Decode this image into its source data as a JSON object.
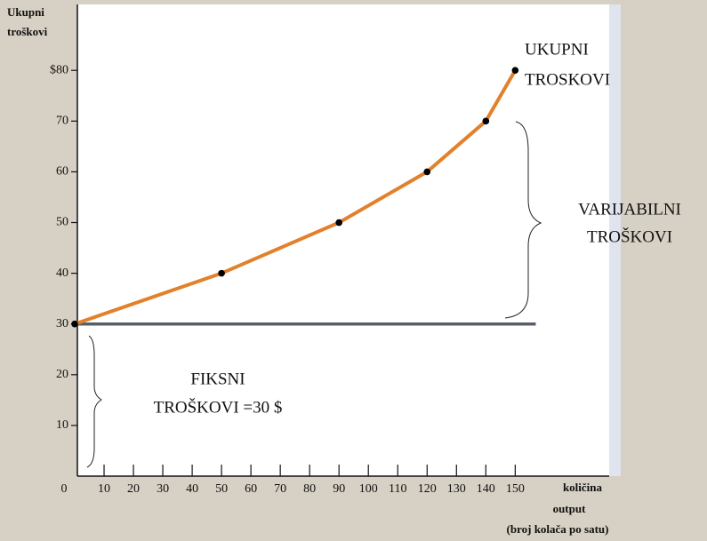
{
  "chart_data": {
    "type": "line",
    "y_label": [
      "Ukupni",
      "troškovi"
    ],
    "x_label": [
      "količina",
      "output",
      "(broj kolača po satu)"
    ],
    "x": [
      0,
      50,
      90,
      120,
      140,
      150
    ],
    "series": [
      {
        "name": "UKUPNI TROSKOVI",
        "color": "#e3802c",
        "values": [
          30,
          40,
          50,
          60,
          70,
          80
        ]
      }
    ],
    "xlim": [
      0,
      182
    ],
    "ylim": [
      0,
      93
    ],
    "xticks": [
      0,
      10,
      20,
      30,
      40,
      50,
      60,
      70,
      80,
      90,
      100,
      110,
      120,
      130,
      140,
      150
    ],
    "yticks": [
      10,
      20,
      30,
      40,
      50,
      60,
      {
        "value": 80,
        "label": "$80"
      },
      70
    ],
    "fixed_line": {
      "value": 30,
      "x_end": 157,
      "color": "#585f6a"
    },
    "annotations": {
      "total": [
        "UKUPNI",
        "TROSKOVI"
      ],
      "variable": [
        "VARIJABILNI",
        "TROŠKOVI"
      ],
      "fixed": [
        "FIKSNI",
        "TROŠKOVI =30 $"
      ]
    }
  }
}
